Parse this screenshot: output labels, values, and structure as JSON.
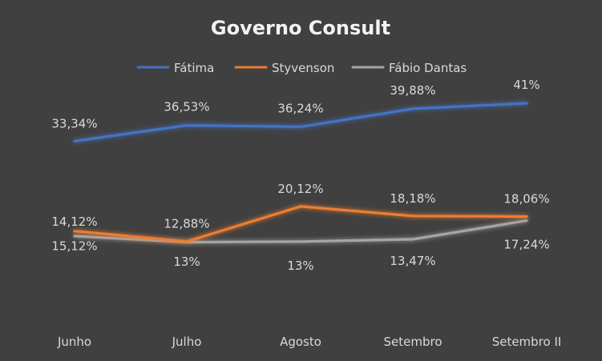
{
  "chart_data": {
    "type": "line",
    "title": "Governo Consult",
    "xlabel": "",
    "ylabel": "",
    "categories": [
      "Junho",
      "Julho",
      "Agosto",
      "Setembro",
      "Setembro II"
    ],
    "ylim": [
      0,
      50
    ],
    "grid": false,
    "legend_position": "top",
    "series": [
      {
        "name": "Fátima",
        "color": "#4472c4",
        "values": [
          33.34,
          36.53,
          36.24,
          39.88,
          41
        ],
        "labels": [
          "33,34%",
          "36,53%",
          "36,24%",
          "39,88%",
          "41%"
        ]
      },
      {
        "name": "Styvenson",
        "color": "#ed7d31",
        "values": [
          15.12,
          13,
          20.12,
          18.18,
          18.06
        ],
        "labels": [
          "15,12%",
          "13%",
          "20,12%",
          "18,18%",
          "18,06%"
        ]
      },
      {
        "name": "Fábio Dantas",
        "color": "#a5a5a5",
        "values": [
          14.12,
          12.88,
          13,
          13.47,
          17.24
        ],
        "labels": [
          "14,12%",
          "12,88%",
          "13%",
          "13,47%",
          "17,24%"
        ]
      }
    ]
  }
}
